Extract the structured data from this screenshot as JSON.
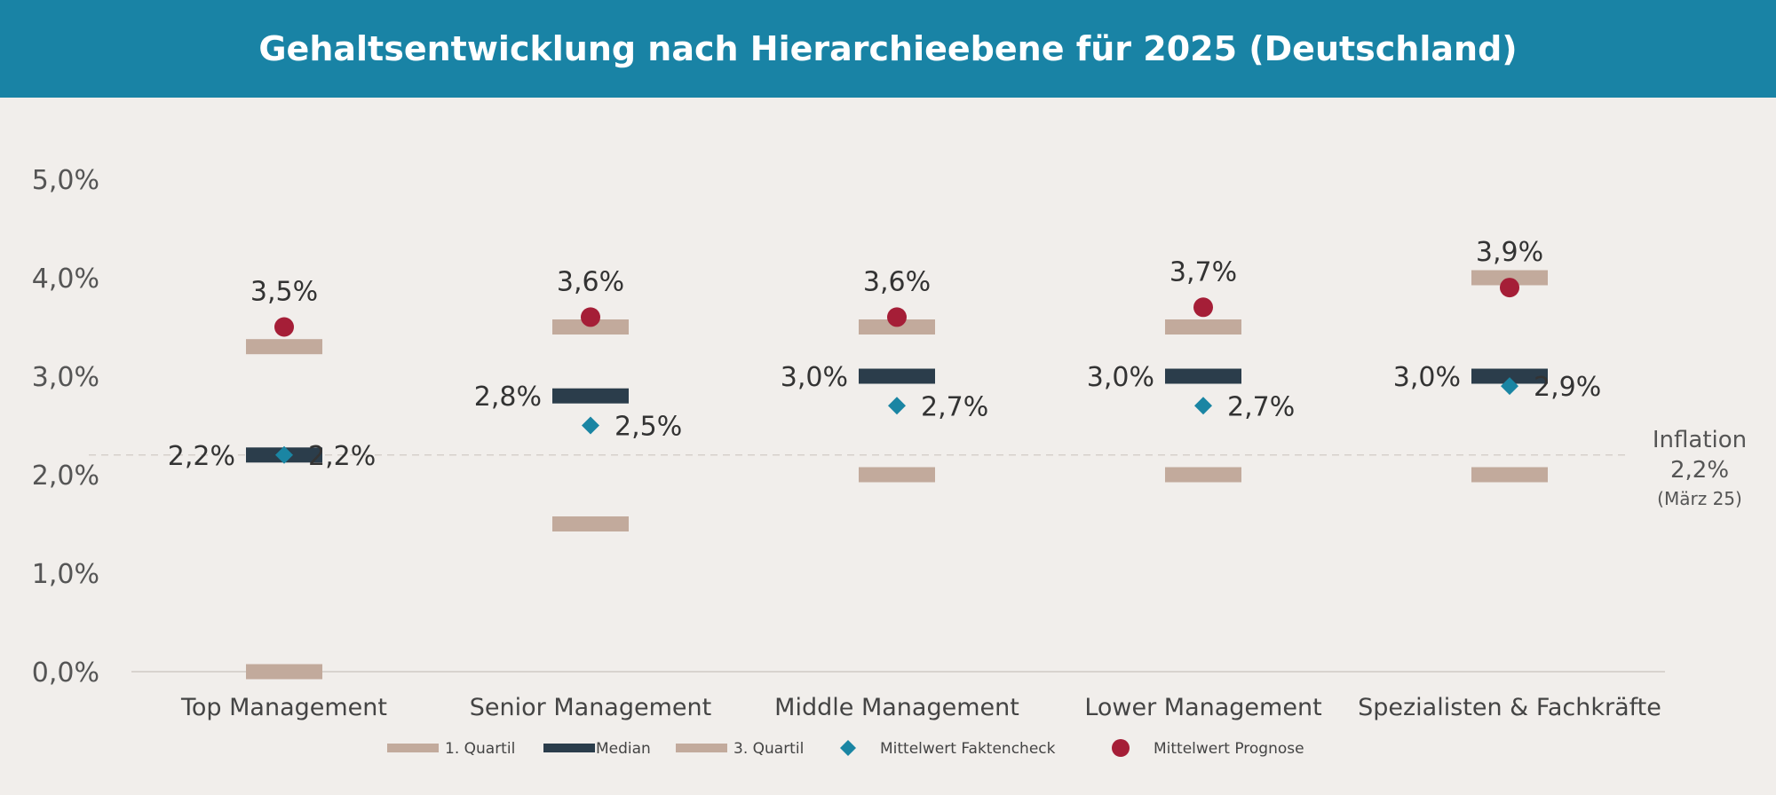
{
  "header": {
    "title": "Gehaltsentwicklung nach Hierarchieebene für 2025 (Deutschland)"
  },
  "colors": {
    "header_bg": "#1983a5",
    "quartile": "#c2aa9c",
    "median": "#2b3d4b",
    "faktencheck": "#1a85a3",
    "prognose": "#a51e37"
  },
  "inflation": {
    "label": "Inflation",
    "value": "2,2%",
    "note": "(März 25)",
    "y": 2.2
  },
  "legend": [
    {
      "key": "q1",
      "label": "1. Quartil"
    },
    {
      "key": "median",
      "label": "Median"
    },
    {
      "key": "q3",
      "label": "3. Quartil"
    },
    {
      "key": "fakt",
      "label": "Mittelwert Faktencheck"
    },
    {
      "key": "prog",
      "label": "Mittelwert Prognose"
    }
  ],
  "chart_data": {
    "type": "scatter",
    "title": "Gehaltsentwicklung nach Hierarchieebene für 2025 (Deutschland)",
    "ylim": [
      0,
      5
    ],
    "yticks": [
      "0,0%",
      "1,0%",
      "2,0%",
      "3,0%",
      "4,0%",
      "5,0%"
    ],
    "grid": false,
    "legend_position": "bottom",
    "categories": [
      "Top Management",
      "Senior Management",
      "Middle Management",
      "Lower Management",
      "Spezialisten & Fachkräfte"
    ],
    "series": [
      {
        "name": "1. Quartil",
        "values": [
          0.0,
          1.5,
          2.0,
          2.0,
          2.0
        ]
      },
      {
        "name": "Median",
        "values": [
          2.2,
          2.8,
          3.0,
          3.0,
          3.0
        ],
        "labels": [
          "2,2%",
          "2,8%",
          "3,0%",
          "3,0%",
          "3,0%"
        ]
      },
      {
        "name": "3. Quartil",
        "values": [
          3.3,
          3.5,
          3.5,
          3.5,
          4.0
        ]
      },
      {
        "name": "Mittelwert Faktencheck",
        "values": [
          2.2,
          2.5,
          2.7,
          2.7,
          2.9
        ],
        "labels": [
          "2,2%",
          "2,5%",
          "2,7%",
          "2,7%",
          "2,9%"
        ]
      },
      {
        "name": "Mittelwert Prognose",
        "values": [
          3.5,
          3.6,
          3.6,
          3.7,
          3.9
        ],
        "labels": [
          "3,5%",
          "3,6%",
          "3,6%",
          "3,7%",
          "3,9%"
        ]
      }
    ]
  }
}
